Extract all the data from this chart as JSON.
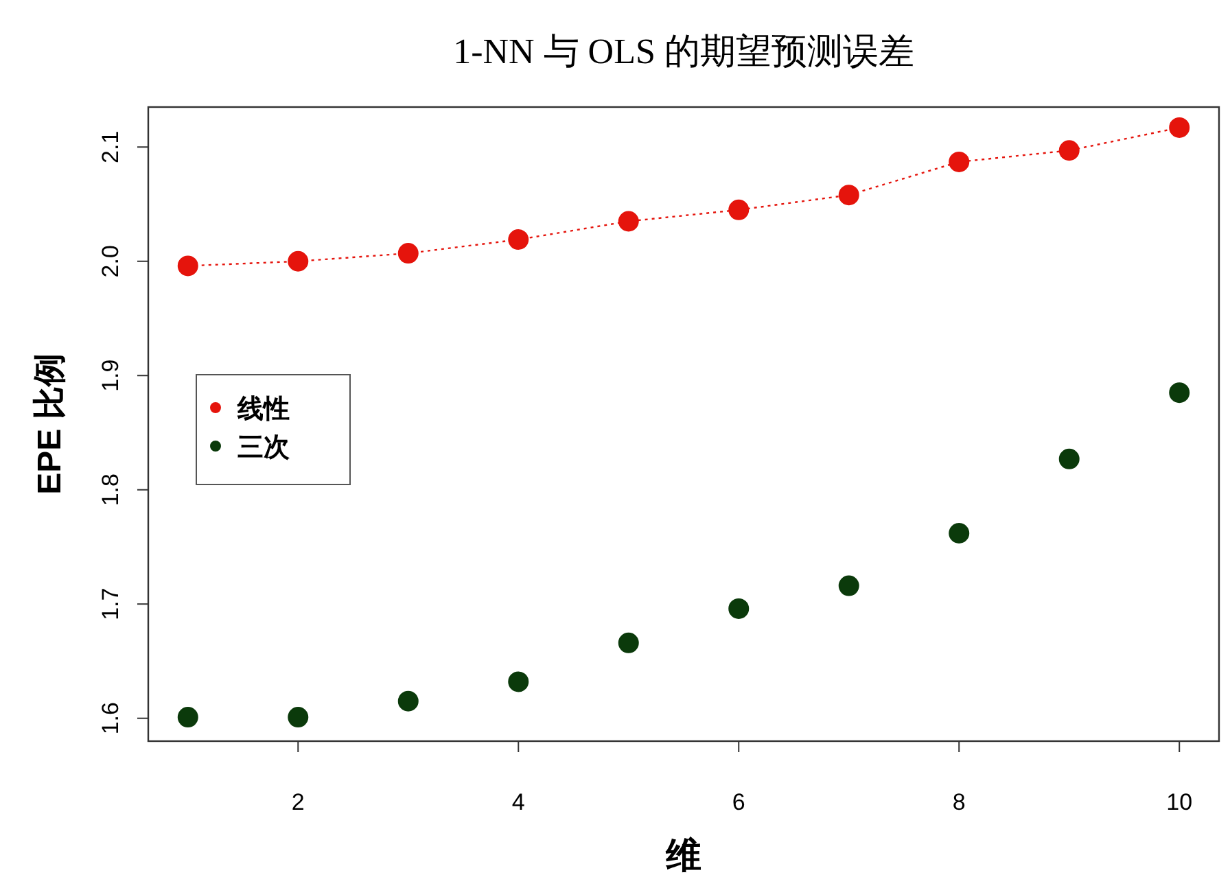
{
  "chart_data": {
    "type": "scatter",
    "title": "1-NN 与 OLS 的期望预测误差",
    "xlabel": "维",
    "ylabel": "EPE 比例",
    "x": [
      1,
      2,
      3,
      4,
      5,
      6,
      7,
      8,
      9,
      10
    ],
    "series": [
      {
        "name": "线性",
        "type": "line",
        "color": "#e5140c",
        "line_style": "dotted",
        "values": [
          1.996,
          2.0,
          2.007,
          2.019,
          2.035,
          2.045,
          2.058,
          2.087,
          2.097,
          2.117
        ]
      },
      {
        "name": "三次",
        "type": "scatter",
        "color": "#0b3a0b",
        "values": [
          1.601,
          1.601,
          1.615,
          1.632,
          1.666,
          1.696,
          1.716,
          1.762,
          1.827,
          1.885
        ]
      }
    ],
    "xlim": [
      0.64,
      10.36
    ],
    "ylim": [
      1.58,
      2.135
    ],
    "xticks": [
      2,
      4,
      6,
      8,
      10
    ],
    "yticks": [
      1.6,
      1.7,
      1.8,
      1.9,
      {
        "value": 2.0,
        "label": "2.0"
      },
      2.1
    ],
    "legend": "left",
    "marker": "circle",
    "grid": false
  }
}
